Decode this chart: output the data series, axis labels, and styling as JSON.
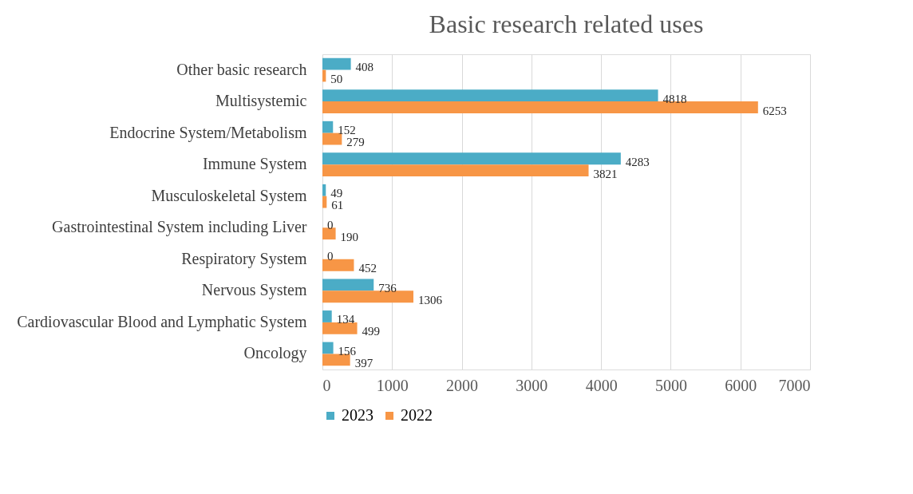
{
  "chart_data": {
    "type": "bar",
    "orientation": "horizontal",
    "title": "Basic research related uses",
    "categories": [
      "Other basic research",
      "Multisystemic",
      "Endocrine System/Metabolism",
      "Immune System",
      "Musculoskeletal System",
      "Gastrointestinal System including Liver",
      "Respiratory System",
      "Nervous System",
      "Cardiovascular Blood and Lymphatic System",
      "Oncology"
    ],
    "series": [
      {
        "name": "2023",
        "color": "#4bacc6",
        "values": [
          408,
          4818,
          152,
          4283,
          49,
          0,
          0,
          736,
          134,
          156
        ]
      },
      {
        "name": "2022",
        "color": "#f79646",
        "values": [
          50,
          6253,
          279,
          3821,
          61,
          190,
          452,
          1306,
          499,
          397
        ]
      }
    ],
    "xlim": [
      0,
      7000
    ],
    "xticks": [
      0,
      1000,
      2000,
      3000,
      4000,
      5000,
      6000,
      7000
    ],
    "grid": "x",
    "legend": "bottom",
    "data_labels": true
  }
}
